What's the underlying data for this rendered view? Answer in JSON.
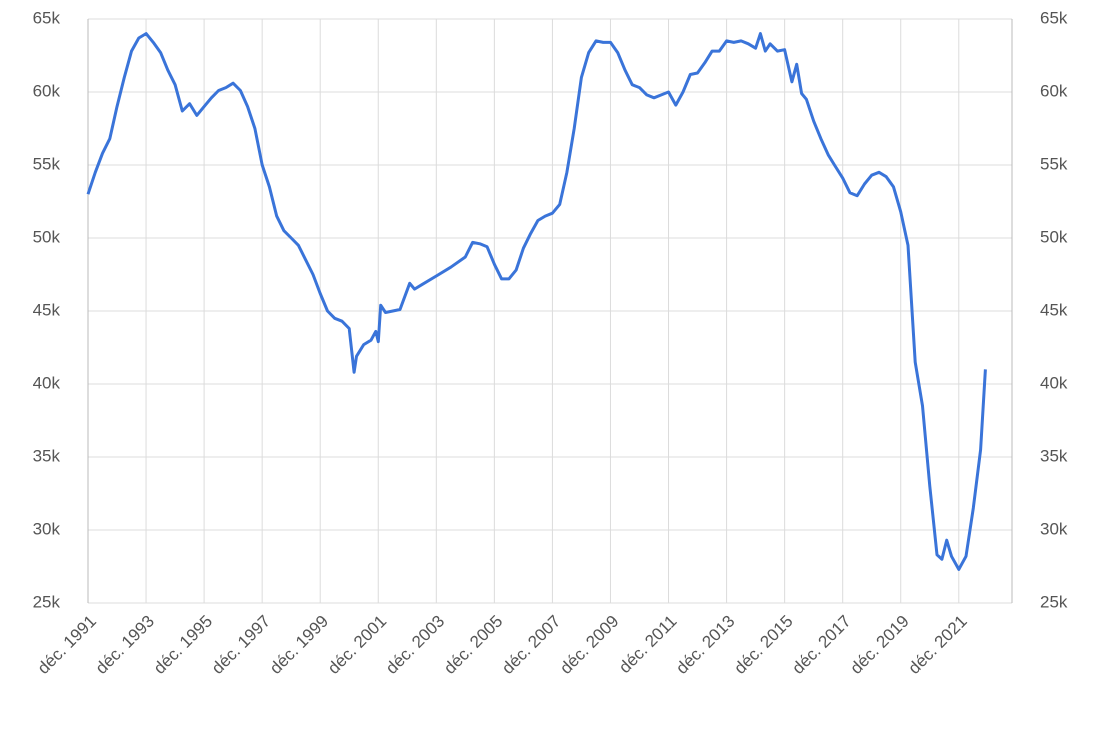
{
  "chart_data": {
    "type": "line",
    "x": [
      "1991-12",
      "1992-03",
      "1992-06",
      "1992-09",
      "1992-12",
      "1993-03",
      "1993-06",
      "1993-09",
      "1993-12",
      "1994-03",
      "1994-06",
      "1994-09",
      "1994-12",
      "1995-03",
      "1995-06",
      "1995-09",
      "1995-12",
      "1996-03",
      "1996-06",
      "1996-09",
      "1996-12",
      "1997-03",
      "1997-06",
      "1997-09",
      "1997-12",
      "1998-03",
      "1998-06",
      "1998-09",
      "1998-12",
      "1999-03",
      "1999-06",
      "1999-09",
      "1999-12",
      "2000-03",
      "2000-06",
      "2000-09",
      "2000-12",
      "2001-02",
      "2001-03",
      "2001-06",
      "2001-09",
      "2001-11",
      "2001-12",
      "2002-01",
      "2002-03",
      "2002-06",
      "2002-09",
      "2003-01",
      "2003-03",
      "2003-06",
      "2003-12",
      "2004-06",
      "2004-12",
      "2005-03",
      "2005-06",
      "2005-09",
      "2005-12",
      "2006-03",
      "2006-06",
      "2006-09",
      "2006-12",
      "2007-03",
      "2007-06",
      "2007-09",
      "2007-12",
      "2008-03",
      "2008-06",
      "2008-09",
      "2008-12",
      "2009-03",
      "2009-06",
      "2009-09",
      "2009-12",
      "2010-03",
      "2010-06",
      "2010-09",
      "2010-12",
      "2011-03",
      "2011-06",
      "2011-09",
      "2011-12",
      "2012-03",
      "2012-06",
      "2012-09",
      "2012-12",
      "2013-03",
      "2013-06",
      "2013-09",
      "2013-12",
      "2014-03",
      "2014-06",
      "2014-09",
      "2014-12",
      "2015-02",
      "2015-04",
      "2015-06",
      "2015-09",
      "2015-12",
      "2016-03",
      "2016-05",
      "2016-07",
      "2016-09",
      "2016-12",
      "2017-03",
      "2017-06",
      "2017-09",
      "2017-12",
      "2018-03",
      "2018-06",
      "2018-09",
      "2018-12",
      "2019-03",
      "2019-06",
      "2019-09",
      "2019-12",
      "2020-03",
      "2020-06",
      "2020-09",
      "2020-12",
      "2021-03",
      "2021-05",
      "2021-07",
      "2021-09",
      "2021-12",
      "2022-03",
      "2022-06",
      "2022-09",
      "2022-11"
    ],
    "series": [
      {
        "color": "#3a74d9",
        "values": [
          53000,
          54500,
          55800,
          56800,
          59000,
          61000,
          62800,
          63700,
          64000,
          63400,
          62700,
          61500,
          60500,
          58700,
          59200,
          58400,
          59000,
          59600,
          60100,
          60300,
          60600,
          60100,
          59000,
          57500,
          55000,
          53500,
          51500,
          50500,
          50000,
          49500,
          48500,
          47500,
          46200,
          45000,
          44500,
          44300,
          43800,
          40800,
          41900,
          42700,
          43000,
          43600,
          42900,
          45400,
          44900,
          45000,
          45100,
          46900,
          46500,
          46800,
          47400,
          48000,
          48700,
          49700,
          49600,
          49400,
          48200,
          47200,
          47200,
          47800,
          49300,
          50300,
          51200,
          51500,
          51700,
          52300,
          54500,
          57500,
          61000,
          62700,
          63500,
          63400,
          63400,
          62700,
          61500,
          60500,
          60300,
          59800,
          59600,
          59800,
          60000,
          59100,
          60000,
          61200,
          61300,
          62000,
          62800,
          62800,
          63500,
          63400,
          63500,
          63300,
          63000,
          64000,
          62800,
          63300,
          62800,
          62900,
          60700,
          61900,
          59900,
          59500,
          58000,
          56800,
          55700,
          54900,
          54100,
          53100,
          52900,
          53700,
          54300,
          54500,
          54200,
          53500,
          51800,
          49500,
          41500,
          38500,
          33000,
          28300,
          28000,
          29300,
          28200,
          27300,
          28200,
          31500,
          35500,
          41000
        ]
      }
    ],
    "xlim": [
      "1991-12",
      "2023-10"
    ],
    "xticks": [
      {
        "value": "1991-12",
        "label": "déc. 1991"
      },
      {
        "value": "1993-12",
        "label": "déc. 1993"
      },
      {
        "value": "1995-12",
        "label": "déc. 1995"
      },
      {
        "value": "1997-12",
        "label": "déc. 1997"
      },
      {
        "value": "1999-12",
        "label": "déc. 1999"
      },
      {
        "value": "2001-12",
        "label": "déc. 2001"
      },
      {
        "value": "2003-12",
        "label": "déc. 2003"
      },
      {
        "value": "2005-12",
        "label": "déc. 2005"
      },
      {
        "value": "2007-12",
        "label": "déc. 2007"
      },
      {
        "value": "2009-12",
        "label": "déc. 2009"
      },
      {
        "value": "2011-12",
        "label": "déc. 2011"
      },
      {
        "value": "2013-12",
        "label": "déc. 2013"
      },
      {
        "value": "2015-12",
        "label": "déc. 2015"
      },
      {
        "value": "2017-12",
        "label": "déc. 2017"
      },
      {
        "value": "2019-12",
        "label": "déc. 2019"
      },
      {
        "value": "2021-12",
        "label": "déc. 2021"
      }
    ],
    "ylim": [
      25000,
      65000
    ],
    "yticks": [
      {
        "value": 25000,
        "label": "25k"
      },
      {
        "value": 30000,
        "label": "30k"
      },
      {
        "value": 35000,
        "label": "35k"
      },
      {
        "value": 40000,
        "label": "40k"
      },
      {
        "value": 45000,
        "label": "45k"
      },
      {
        "value": 50000,
        "label": "50k"
      },
      {
        "value": 55000,
        "label": "55k"
      },
      {
        "value": 60000,
        "label": "60k"
      },
      {
        "value": 65000,
        "label": "65k"
      }
    ],
    "y2lim": [
      25000,
      65000
    ],
    "y2ticks": [
      {
        "value": 25000,
        "label": "25k"
      },
      {
        "value": 30000,
        "label": "30k"
      },
      {
        "value": 35000,
        "label": "35k"
      },
      {
        "value": 40000,
        "label": "40k"
      },
      {
        "value": 45000,
        "label": "45k"
      },
      {
        "value": 50000,
        "label": "50k"
      },
      {
        "value": 55000,
        "label": "55k"
      },
      {
        "value": 60000,
        "label": "60k"
      },
      {
        "value": 65000,
        "label": "65k"
      }
    ],
    "grid": true
  }
}
